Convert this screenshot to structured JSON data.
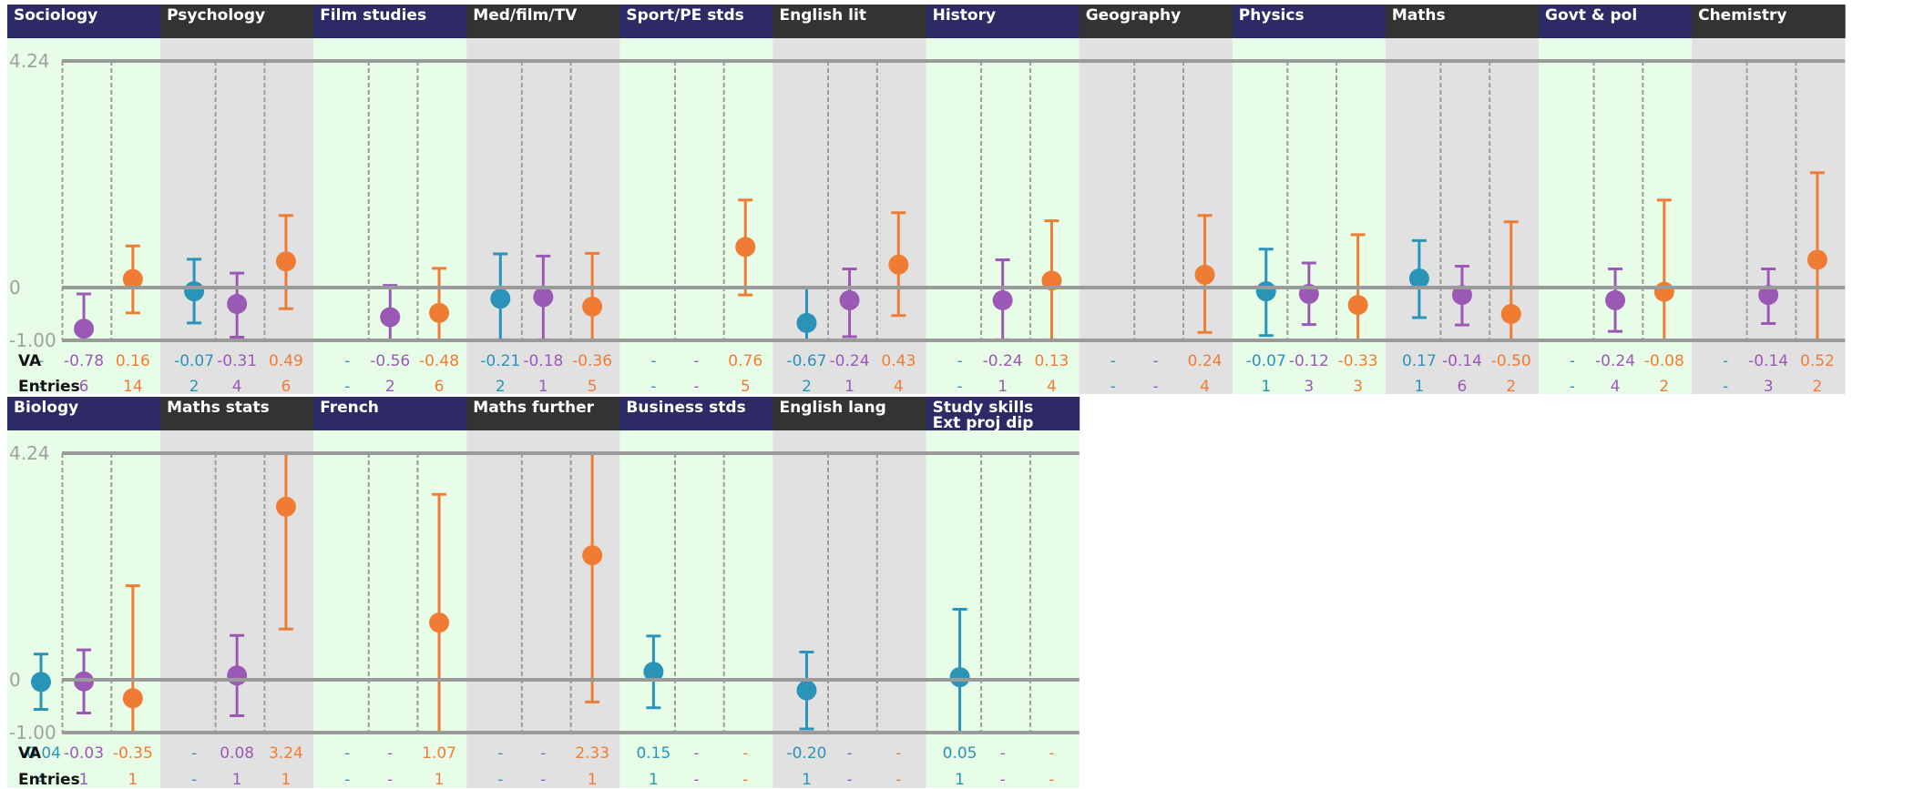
{
  "chart_data": {
    "type": "scatter",
    "title": "",
    "ylim": [
      -1.0,
      4.24
    ],
    "y_ticks": [
      "4.24",
      "0",
      "-1.00"
    ],
    "row_labels": {
      "va": "VA",
      "entries": "Entries"
    },
    "legend": "none",
    "series_colors": [
      "#2a93b8",
      "#9b59b6",
      "#f07c34"
    ],
    "header_colors": {
      "light": "#2e2a66",
      "dark": "#333333"
    },
    "panel_colors": {
      "light": "#e8fde8",
      "dark": "#e1e1e1"
    },
    "subjects": [
      {
        "name": "Sociology",
        "va": [
          "-",
          "-0.78",
          "0.16"
        ],
        "entries": [
          "-",
          "6",
          "14"
        ],
        "points": [
          null,
          {
            "y": -0.78,
            "lo": -1.0,
            "hi": -0.12
          },
          {
            "y": 0.16,
            "lo": -0.48,
            "hi": 0.78
          }
        ]
      },
      {
        "name": "Psychology",
        "va": [
          "-0.07",
          "-0.31",
          "0.49"
        ],
        "entries": [
          "2",
          "4",
          "6"
        ],
        "points": [
          {
            "y": -0.07,
            "lo": -0.67,
            "hi": 0.53
          },
          {
            "y": -0.31,
            "lo": -0.94,
            "hi": 0.27
          },
          {
            "y": 0.49,
            "lo": -0.4,
            "hi": 1.35
          }
        ]
      },
      {
        "name": "Film studies",
        "va": [
          "-",
          "-0.56",
          "-0.48"
        ],
        "entries": [
          "-",
          "2",
          "6"
        ],
        "points": [
          null,
          {
            "y": -0.56,
            "lo": -1.0,
            "hi": 0.04
          },
          {
            "y": -0.48,
            "lo": -1.0,
            "hi": 0.36
          }
        ]
      },
      {
        "name": "Med/film/TV",
        "va": [
          "-0.21",
          "-0.18",
          "-0.36"
        ],
        "entries": [
          "2",
          "1",
          "5"
        ],
        "points": [
          {
            "y": -0.21,
            "lo": -0.99,
            "hi": 0.63
          },
          {
            "y": -0.18,
            "lo": -0.99,
            "hi": 0.59
          },
          {
            "y": -0.36,
            "lo": -1.0,
            "hi": 0.64
          }
        ]
      },
      {
        "name": "Sport/PE stds",
        "va": [
          "-",
          "-",
          "0.76"
        ],
        "entries": [
          "-",
          "-",
          "5"
        ],
        "points": [
          null,
          null,
          {
            "y": 0.76,
            "lo": -0.14,
            "hi": 1.64
          }
        ]
      },
      {
        "name": "English lit",
        "va": [
          "-0.67",
          "-0.24",
          "0.43"
        ],
        "entries": [
          "2",
          "1",
          "4"
        ],
        "points": [
          {
            "y": -0.67,
            "lo": -1.0,
            "hi": 0.0
          },
          {
            "y": -0.24,
            "lo": -0.93,
            "hi": 0.35
          },
          {
            "y": 0.43,
            "lo": -0.53,
            "hi": 1.4
          }
        ]
      },
      {
        "name": "History",
        "va": [
          "-",
          "-0.24",
          "0.13"
        ],
        "entries": [
          "-",
          "1",
          "4"
        ],
        "points": [
          null,
          {
            "y": -0.24,
            "lo": -0.99,
            "hi": 0.52
          },
          {
            "y": 0.13,
            "lo": -0.99,
            "hi": 1.25
          }
        ]
      },
      {
        "name": "Geography",
        "va": [
          "-",
          "-",
          "0.24"
        ],
        "entries": [
          "-",
          "-",
          "4"
        ],
        "points": [
          null,
          null,
          {
            "y": 0.24,
            "lo": -0.85,
            "hi": 1.35
          }
        ]
      },
      {
        "name": "Physics",
        "va": [
          "-0.07",
          "-0.12",
          "-0.33"
        ],
        "entries": [
          "1",
          "3",
          "3"
        ],
        "points": [
          {
            "y": -0.07,
            "lo": -0.91,
            "hi": 0.72
          },
          {
            "y": -0.12,
            "lo": -0.7,
            "hi": 0.46
          },
          {
            "y": -0.33,
            "lo": -1.0,
            "hi": 0.99
          }
        ]
      },
      {
        "name": "Maths",
        "va": [
          "0.17",
          "-0.14",
          "-0.50"
        ],
        "entries": [
          "1",
          "6",
          "2"
        ],
        "points": [
          {
            "y": 0.17,
            "lo": -0.57,
            "hi": 0.88
          },
          {
            "y": -0.14,
            "lo": -0.71,
            "hi": 0.4
          },
          {
            "y": -0.5,
            "lo": -1.0,
            "hi": 1.23
          }
        ]
      },
      {
        "name": "Govt & pol",
        "va": [
          "-",
          "-0.24",
          "-0.08"
        ],
        "entries": [
          "-",
          "4",
          "2"
        ],
        "points": [
          null,
          {
            "y": -0.24,
            "lo": -0.83,
            "hi": 0.35
          },
          {
            "y": -0.08,
            "lo": -1.0,
            "hi": 1.64
          }
        ]
      },
      {
        "name": "Chemistry",
        "va": [
          "-",
          "-0.14",
          "0.52"
        ],
        "entries": [
          "-",
          "3",
          "2"
        ],
        "points": [
          null,
          {
            "y": -0.14,
            "lo": -0.68,
            "hi": 0.35
          },
          {
            "y": 0.52,
            "lo": -1.0,
            "hi": 2.15
          }
        ]
      },
      {
        "name": "Biology",
        "va": [
          "-0.04",
          "-0.03",
          "-0.35"
        ],
        "entries": [
          "4",
          "1",
          "1"
        ],
        "points": [
          {
            "y": -0.04,
            "lo": -0.56,
            "hi": 0.48
          },
          {
            "y": -0.03,
            "lo": -0.63,
            "hi": 0.56
          },
          {
            "y": -0.35,
            "lo": -1.0,
            "hi": 1.76
          }
        ]
      },
      {
        "name": "Maths stats",
        "va": [
          "-",
          "0.08",
          "3.24"
        ],
        "entries": [
          "-",
          "1",
          "1"
        ],
        "points": [
          null,
          {
            "y": 0.08,
            "lo": -0.68,
            "hi": 0.83
          },
          {
            "y": 3.24,
            "lo": 0.95,
            "hi": 4.24
          }
        ]
      },
      {
        "name": "French",
        "va": [
          "-",
          "-",
          "1.07"
        ],
        "entries": [
          "-",
          "-",
          "1"
        ],
        "points": [
          null,
          null,
          {
            "y": 1.07,
            "lo": -1.0,
            "hi": 3.47
          }
        ]
      },
      {
        "name": "Maths further",
        "va": [
          "-",
          "-",
          "2.33"
        ],
        "entries": [
          "-",
          "-",
          "1"
        ],
        "points": [
          null,
          null,
          {
            "y": 2.33,
            "lo": -0.42,
            "hi": 4.24
          }
        ]
      },
      {
        "name": "Business stds",
        "va": [
          "0.15",
          "-",
          "-"
        ],
        "entries": [
          "1",
          "-",
          "-"
        ],
        "points": [
          {
            "y": 0.15,
            "lo": -0.53,
            "hi": 0.82
          },
          null,
          null
        ]
      },
      {
        "name": "English lang",
        "va": [
          "-0.20",
          "-",
          "-"
        ],
        "entries": [
          "1",
          "-",
          "-"
        ],
        "points": [
          {
            "y": -0.2,
            "lo": -0.93,
            "hi": 0.52
          },
          null,
          null
        ]
      },
      {
        "name": "Study skills\nExt proj dip",
        "va": [
          "0.05",
          "-",
          "-"
        ],
        "entries": [
          "1",
          "-",
          "-"
        ],
        "points": [
          {
            "y": 0.05,
            "lo": -1.0,
            "hi": 1.32
          },
          null,
          null
        ]
      }
    ]
  }
}
